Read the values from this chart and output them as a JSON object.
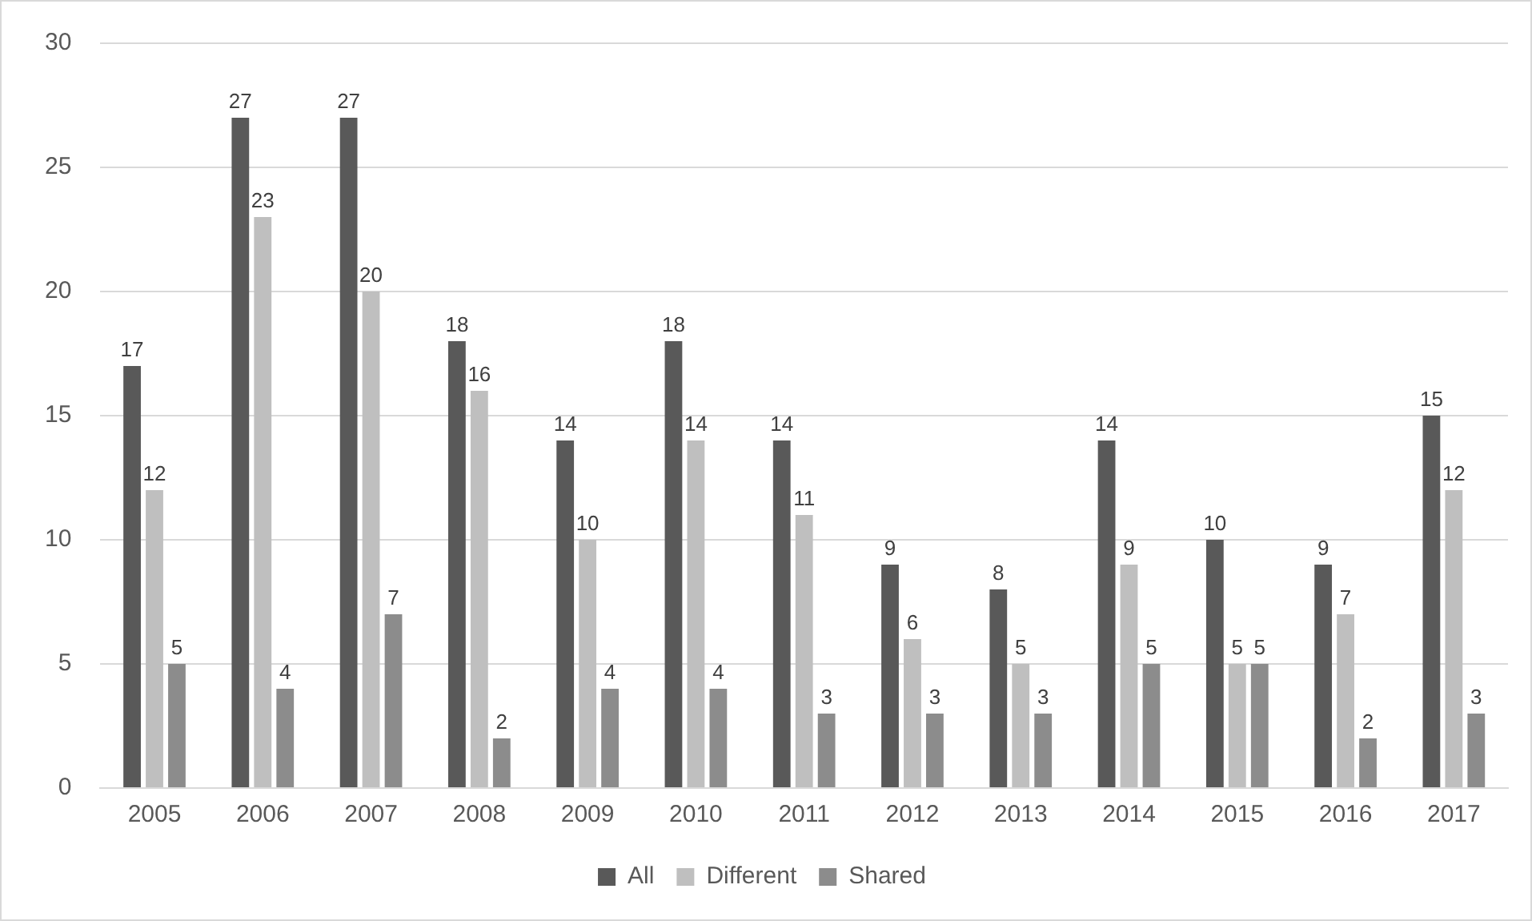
{
  "chart_data": {
    "type": "bar",
    "categories": [
      "2005",
      "2006",
      "2007",
      "2008",
      "2009",
      "2010",
      "2011",
      "2012",
      "2013",
      "2014",
      "2015",
      "2016",
      "2017"
    ],
    "series": [
      {
        "name": "All",
        "color": "#595959",
        "values": [
          17,
          27,
          27,
          18,
          14,
          18,
          14,
          9,
          8,
          14,
          10,
          9,
          15
        ]
      },
      {
        "name": "Different",
        "color": "#bfbfbf",
        "values": [
          12,
          23,
          20,
          16,
          10,
          14,
          11,
          6,
          5,
          9,
          5,
          7,
          12
        ]
      },
      {
        "name": "Shared",
        "color": "#8c8c8c",
        "values": [
          5,
          4,
          7,
          2,
          4,
          4,
          3,
          3,
          3,
          5,
          5,
          2,
          3
        ]
      }
    ],
    "ylim": [
      0,
      30
    ],
    "yticks": [
      0,
      5,
      10,
      15,
      20,
      25,
      30
    ],
    "grid": "y",
    "legend": "bottom",
    "data_labels": true
  }
}
